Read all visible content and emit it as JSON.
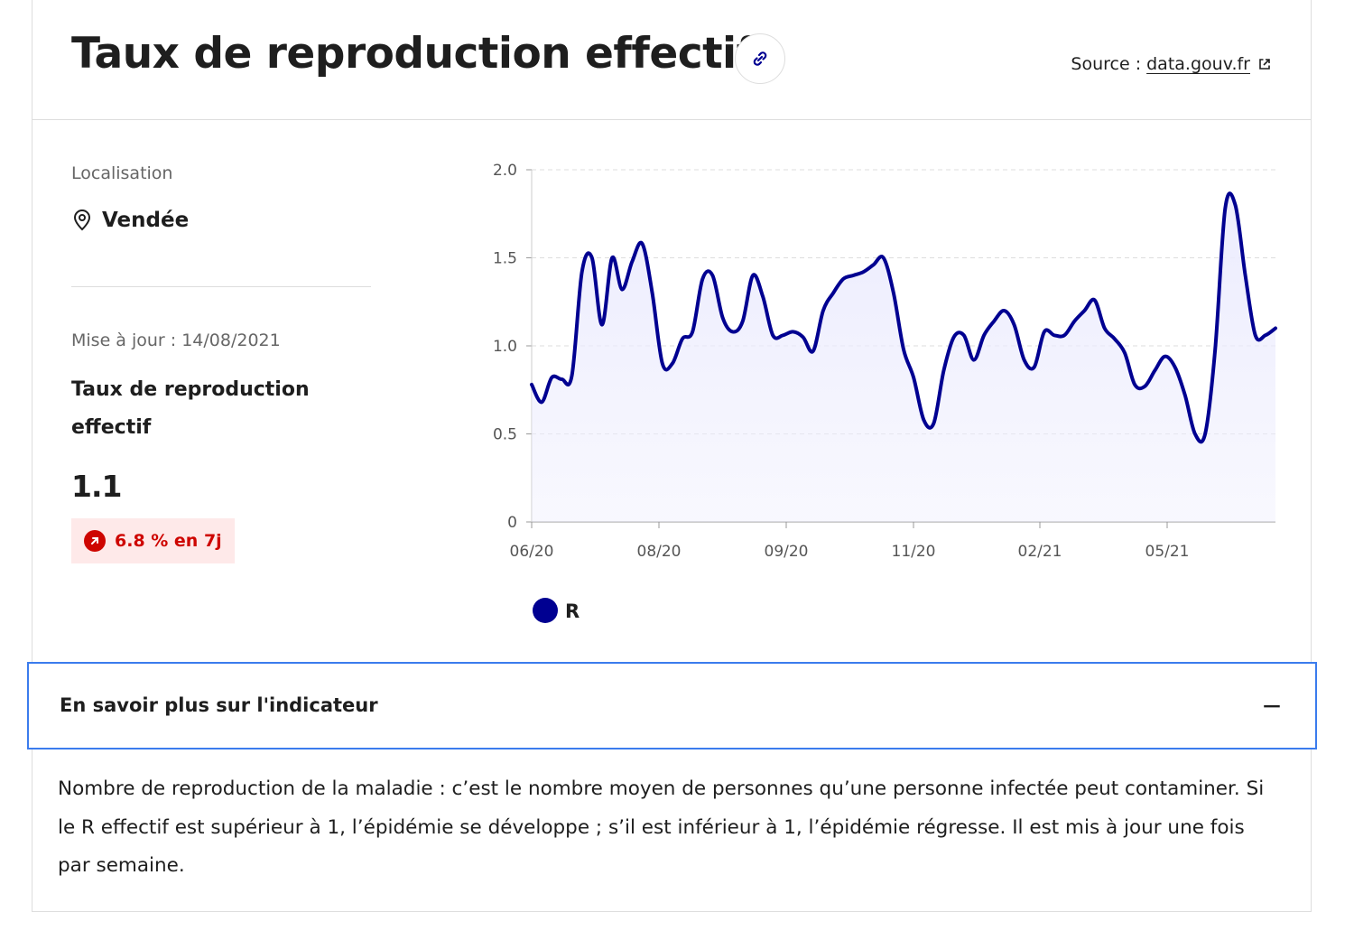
{
  "header": {
    "title": "Taux de reproduction effectif",
    "link_icon": "link-icon",
    "source_label": "Source :",
    "source_link": "data.gouv.fr",
    "external_icon": "external-link-icon"
  },
  "sidebar": {
    "location_label": "Localisation",
    "location_icon": "map-pin-icon",
    "location_value": "Vendée",
    "update_text": "Mise à jour : 14/08/2021",
    "indicator_name": "Taux de reproduction effectif",
    "indicator_value": "1.1",
    "trend_icon": "arrow-up-right-icon",
    "trend_text": "6.8 % en 7j",
    "trend_color": "#ce0500",
    "trend_bg": "#fee9e9"
  },
  "chart_data": {
    "type": "line",
    "x_start": "2020-06",
    "x_ticks": [
      "06/20",
      "08/20",
      "09/20",
      "11/20",
      "02/21",
      "05/21"
    ],
    "y_ticks": [
      "0",
      "0.5",
      "1.0",
      "1.5",
      "2.0"
    ],
    "ylim": [
      0,
      2.0
    ],
    "grid": true,
    "legend_position": "bottom-left",
    "series": [
      {
        "name": "R",
        "color": "#000091",
        "fill": "#ececfe",
        "values": [
          0.78,
          0.68,
          0.82,
          0.81,
          0.83,
          1.42,
          1.5,
          1.12,
          1.5,
          1.32,
          1.48,
          1.58,
          1.3,
          0.9,
          0.9,
          1.04,
          1.08,
          1.38,
          1.4,
          1.16,
          1.08,
          1.14,
          1.4,
          1.28,
          1.06,
          1.06,
          1.08,
          1.05,
          0.97,
          1.2,
          1.3,
          1.38,
          1.4,
          1.42,
          1.46,
          1.5,
          1.3,
          0.98,
          0.82,
          0.58,
          0.56,
          0.86,
          1.05,
          1.06,
          0.92,
          1.06,
          1.14,
          1.2,
          1.12,
          0.92,
          0.88,
          1.08,
          1.06,
          1.06,
          1.14,
          1.2,
          1.26,
          1.1,
          1.04,
          0.96,
          0.78,
          0.77,
          0.86,
          0.94,
          0.88,
          0.72,
          0.5,
          0.5,
          0.98,
          1.78,
          1.8,
          1.4,
          1.06,
          1.06,
          1.1
        ]
      }
    ]
  },
  "accordion": {
    "title": "En savoir plus sur l'indicateur",
    "toggle": "−"
  },
  "description": "Nombre de reproduction de la maladie : c’est le nombre moyen de personnes qu’une personne infectée peut contaminer. Si le R effectif est supérieur à 1, l’épidémie se développe ; s’il est inférieur à 1, l’épidémie régresse. Il est mis à jour une fois par semaine."
}
